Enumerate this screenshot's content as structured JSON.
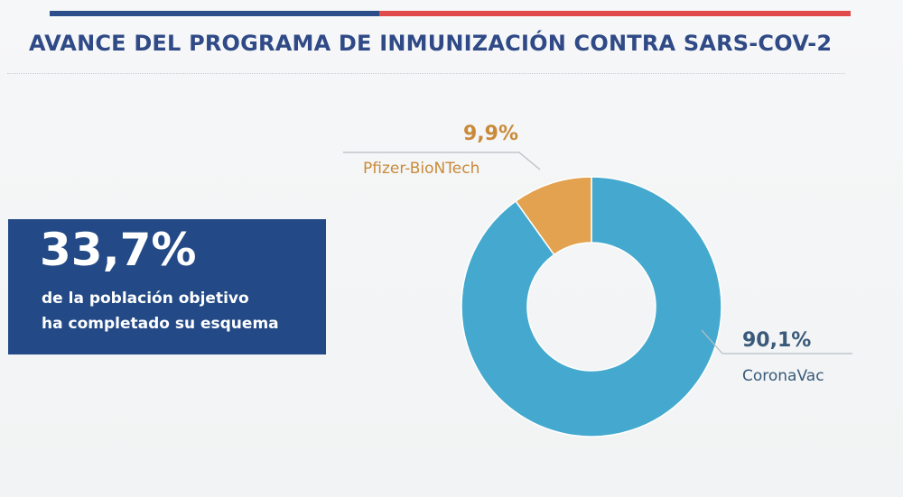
{
  "slide": {
    "title": "AVANCE DEL PROGRAMA DE INMUNIZACIÓN CONTRA SARS-COV-2",
    "kpi": {
      "value": "33,7%",
      "line1": "de la población objetivo",
      "line2": "ha completado su esquema",
      "color": "#234a86"
    },
    "colors": {
      "title": "#2f4a86",
      "stripe_left": "#2b4d8a",
      "stripe_right": "#e04a4a"
    }
  },
  "chart_data": {
    "type": "pie",
    "variant": "donut",
    "series": [
      {
        "name": "CoronaVac",
        "value": 90.1,
        "label": "90,1%",
        "color": "#45a9cf",
        "label_color": "#3a5a7a"
      },
      {
        "name": "Pfizer-BioNTech",
        "value": 9.9,
        "label": "9,9%",
        "color": "#e2a24f",
        "label_color": "#c98a3a"
      }
    ],
    "title": "",
    "legend": "none"
  }
}
